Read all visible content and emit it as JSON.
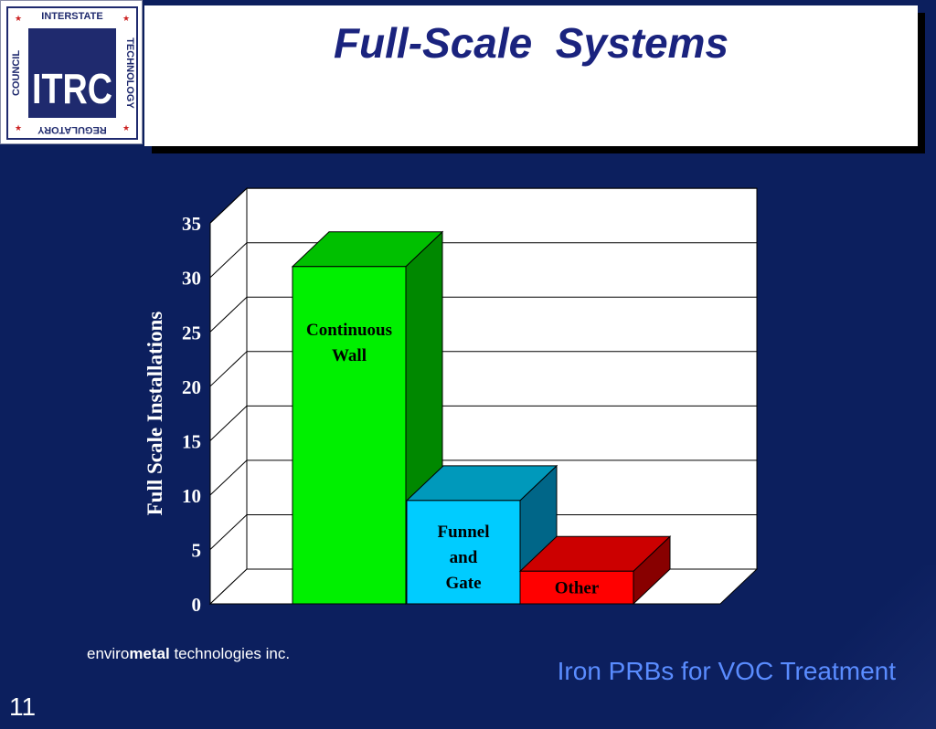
{
  "title": "Full-Scale  Systems",
  "logo": {
    "text_top": "INTERSTATE",
    "text_right": "TECHNOLOGY",
    "text_bottom": "REGULATORY",
    "text_left": "COUNCIL",
    "mark": "ITRC",
    "colors": {
      "navy": "#1f2a6e",
      "red": "#cc2222"
    }
  },
  "chart_data": {
    "type": "bar",
    "categories": [
      "Continuous\nWall",
      "Funnel\n and\nGate",
      "Other"
    ],
    "values": [
      31,
      9.5,
      3
    ],
    "colors": [
      {
        "front": "#00f000",
        "top": "#00c000",
        "side": "#008800"
      },
      {
        "front": "#00ccff",
        "top": "#0099bb",
        "side": "#006688"
      },
      {
        "front": "#ff0000",
        "top": "#cc0000",
        "side": "#880000"
      }
    ],
    "ylabel": "Full Scale Installations",
    "yticks": [
      0,
      5,
      10,
      15,
      20,
      25,
      30,
      35
    ],
    "ylim": [
      0,
      35
    ],
    "grid": true,
    "three_d": true
  },
  "footer": {
    "credit_pre": "enviro",
    "credit_bold": "metal",
    "credit_post": " technologies inc.",
    "tagline": "Iron PRBs for VOC Treatment",
    "slide_number": "11"
  }
}
